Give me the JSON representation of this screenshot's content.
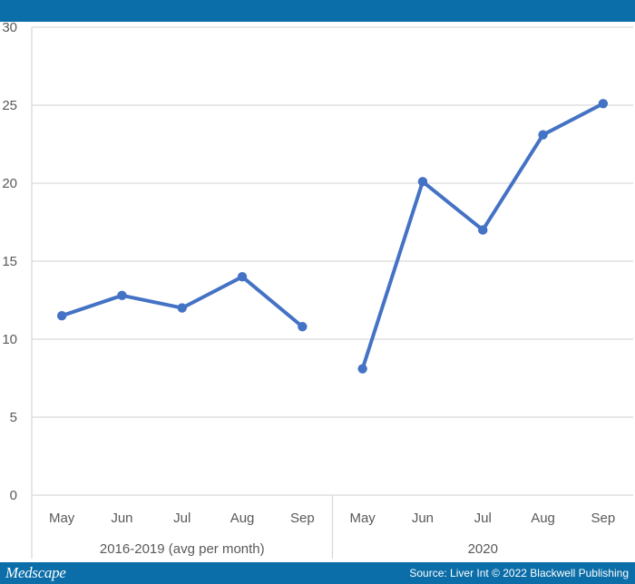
{
  "footer": {
    "brand": "Medscape",
    "source": "Source: Liver Int © 2022 Blackwell Publishing"
  },
  "colors": {
    "header_bar": "#0b6ea8",
    "series_line": "#4472c4",
    "gridline": "#d9d9d9",
    "axis_text": "#595959"
  },
  "chart_data": {
    "type": "line",
    "title": "",
    "xlabel": "",
    "ylabel": "",
    "ylim": [
      0,
      30
    ],
    "yticks": [
      0,
      5,
      10,
      15,
      20,
      25,
      30
    ],
    "grid": true,
    "legend": "none",
    "groups": [
      {
        "label": "2016-2019 (avg per month)",
        "categories": [
          "May",
          "Jun",
          "Jul",
          "Aug",
          "Sep"
        ],
        "values": [
          11.5,
          12.8,
          12.0,
          14.0,
          10.8
        ]
      },
      {
        "label": "2020",
        "categories": [
          "May",
          "Jun",
          "Jul",
          "Aug",
          "Sep"
        ],
        "values": [
          8.1,
          20.1,
          17.0,
          23.1,
          25.1
        ]
      }
    ]
  }
}
